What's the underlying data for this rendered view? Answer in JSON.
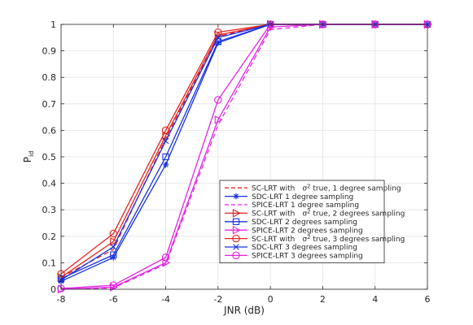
{
  "chart_data": {
    "type": "line",
    "xlabel": "JNR (dB)",
    "ylabel": "P",
    "ylabel_sub": "id",
    "xlim": [
      -8,
      6
    ],
    "ylim": [
      0,
      1
    ],
    "xticks": [
      "-8",
      "-6",
      "-4",
      "-2",
      "0",
      "2",
      "4",
      "6"
    ],
    "yticks": [
      "0",
      "0.1",
      "0.2",
      "0.3",
      "0.4",
      "0.5",
      "0.6",
      "0.7",
      "0.8",
      "0.9",
      "1"
    ],
    "grid": true,
    "legend_position": "bottom-right",
    "x": [
      -8,
      -6,
      -4,
      -2,
      0,
      2,
      4,
      6
    ],
    "series": [
      {
        "pre": "SC-LRT with",
        "sup": "2",
        "post": " true, 1 degree sampling",
        "color": "#e52521",
        "dash": "6,4",
        "marker": "none",
        "values": [
          0.045,
          0.15,
          0.57,
          0.955,
          1,
          1,
          1,
          1
        ]
      },
      {
        "label": "SDC-LRT 1 degree sampling",
        "color": "#1731e0",
        "dash": "",
        "marker": "asterisk",
        "values": [
          0.03,
          0.12,
          0.47,
          0.93,
          1,
          1,
          1,
          1
        ]
      },
      {
        "label": "SPICE-LRT 1 degree sampling",
        "color": "#e424e4",
        "dash": "6,4",
        "marker": "none",
        "values": [
          0.0,
          0.005,
          0.095,
          0.62,
          0.98,
          1,
          1,
          1
        ]
      },
      {
        "pre": "SC-LRT with",
        "sup": "2",
        "post": " true, 2 degrees sampling",
        "color": "#e52521",
        "dash": "",
        "marker": "triangle-right",
        "values": [
          0.045,
          0.18,
          0.58,
          0.96,
          1,
          1,
          1,
          1
        ]
      },
      {
        "label": "SDC-LRT 2 degrees sampling",
        "color": "#1731e0",
        "dash": "",
        "marker": "square",
        "values": [
          0.04,
          0.13,
          0.5,
          0.935,
          1,
          1,
          1,
          1
        ]
      },
      {
        "label": "SPICE-LRT 2 degrees sampling",
        "color": "#e424e4",
        "dash": "",
        "marker": "triangle-right",
        "values": [
          0.0,
          0.008,
          0.1,
          0.64,
          0.99,
          1,
          1,
          1
        ]
      },
      {
        "pre": "SC-LRT with",
        "sup": "2",
        "post": " true, 3 degrees sampling",
        "color": "#e52521",
        "dash": "",
        "marker": "circle",
        "values": [
          0.058,
          0.21,
          0.6,
          0.97,
          1,
          1,
          1,
          1
        ]
      },
      {
        "label": "SDC-LRT 3 degrees sampling",
        "color": "#1731e0",
        "dash": "",
        "marker": "x",
        "values": [
          0.035,
          0.16,
          0.56,
          0.95,
          1,
          1,
          1,
          1
        ]
      },
      {
        "label": "SPICE-LRT 3 degrees sampling",
        "color": "#e424e4",
        "dash": "",
        "marker": "circle",
        "values": [
          0.003,
          0.015,
          0.12,
          0.715,
          1,
          1,
          1,
          1
        ]
      }
    ]
  }
}
